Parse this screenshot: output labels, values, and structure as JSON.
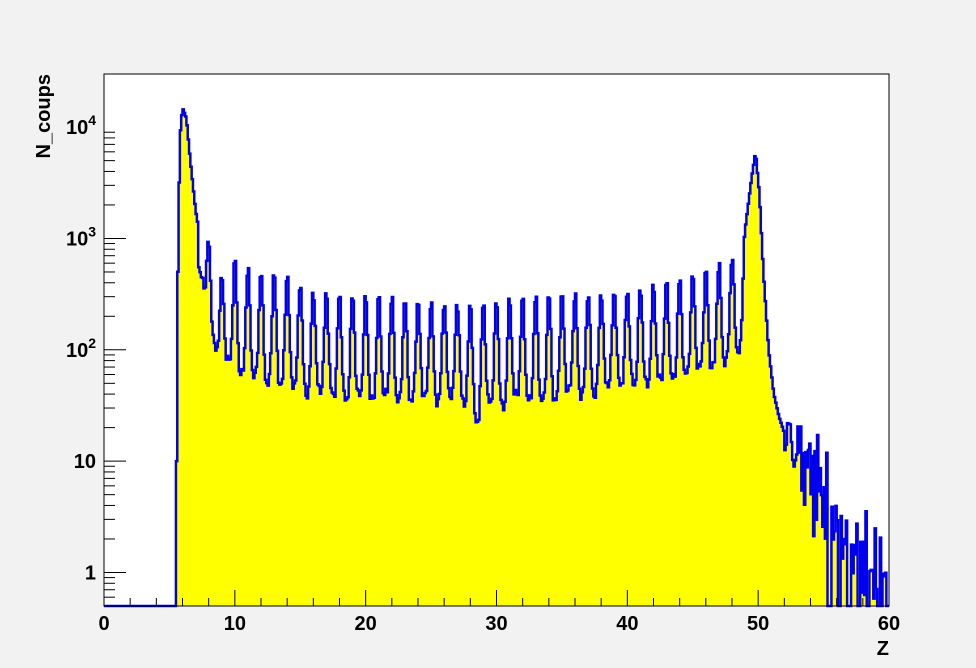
{
  "chart_data": {
    "type": "area",
    "title": "",
    "xlabel": "Z",
    "ylabel": "N_coups",
    "xlim": [
      0,
      60
    ],
    "ylim": [
      0.5,
      30000
    ],
    "y_scale": "log",
    "grid": false,
    "legend": "none",
    "x_ticks": [
      {
        "value": 0,
        "label": "0"
      },
      {
        "value": 10,
        "label": "10"
      },
      {
        "value": 20,
        "label": "20"
      },
      {
        "value": 30,
        "label": "30"
      },
      {
        "value": 40,
        "label": "40"
      },
      {
        "value": 50,
        "label": "50"
      },
      {
        "value": 60,
        "label": "60"
      }
    ],
    "y_ticks": [
      {
        "value": 1,
        "base": "1",
        "exp": ""
      },
      {
        "value": 10,
        "base": "10",
        "exp": ""
      },
      {
        "value": 100,
        "base": "10",
        "exp": "2"
      },
      {
        "value": 1000,
        "base": "10",
        "exp": "3"
      },
      {
        "value": 10000,
        "base": "10",
        "exp": "4"
      }
    ],
    "series": [
      {
        "x": [
          0,
          5.5,
          5.6,
          5.8,
          6.0,
          6.3,
          6.6,
          7.0,
          7.5,
          8.0,
          8.5,
          9.0,
          10,
          11,
          12,
          13,
          14,
          16,
          18,
          20,
          22,
          24,
          26,
          28,
          30,
          32,
          34,
          36,
          38,
          40,
          42,
          44,
          46,
          48,
          49.0,
          49.5,
          49.8,
          50.1,
          50.4,
          50.8,
          51.2,
          51.6,
          52,
          53,
          54,
          55,
          56,
          57,
          58,
          59,
          60
        ],
        "y": [
          0.5,
          0.5,
          200,
          8000,
          15000,
          12000,
          5000,
          1800,
          800,
          1000,
          300,
          450,
          650,
          550,
          520,
          520,
          500,
          350,
          320,
          300,
          300,
          280,
          280,
          270,
          280,
          290,
          320,
          330,
          340,
          350,
          380,
          430,
          520,
          700,
          1200,
          3500,
          6000,
          2500,
          500,
          100,
          40,
          25,
          18,
          12,
          8,
          5,
          3,
          2,
          1.5,
          1.2,
          1
        ],
        "valleys_x": [
          7.5,
          8.5,
          9.5,
          10.5,
          11.5,
          12.5,
          13.5,
          14.5,
          15.5,
          16.5,
          17.5,
          18.5,
          19.5,
          20.5,
          21.5,
          22.5,
          23.5,
          24.5,
          25.5,
          26.5,
          27.5,
          28.5,
          29.5,
          30.5,
          31.5,
          32.5,
          33.5,
          34.5,
          35.5,
          36.5,
          37.5,
          38.5,
          39.5,
          40.5,
          41.5,
          42.5,
          43.5,
          44.5,
          45.5,
          46.5,
          47.5,
          48.5
        ],
        "valleys_y": [
          450,
          100,
          80,
          60,
          60,
          50,
          50,
          50,
          40,
          45,
          40,
          35,
          40,
          35,
          40,
          35,
          35,
          40,
          35,
          40,
          35,
          22,
          35,
          30,
          40,
          35,
          35,
          35,
          45,
          40,
          40,
          50,
          50,
          50,
          50,
          55,
          55,
          60,
          70,
          70,
          80,
          100
        ],
        "line_color": "#0000ee",
        "fill_color": "#ffff00"
      }
    ]
  }
}
